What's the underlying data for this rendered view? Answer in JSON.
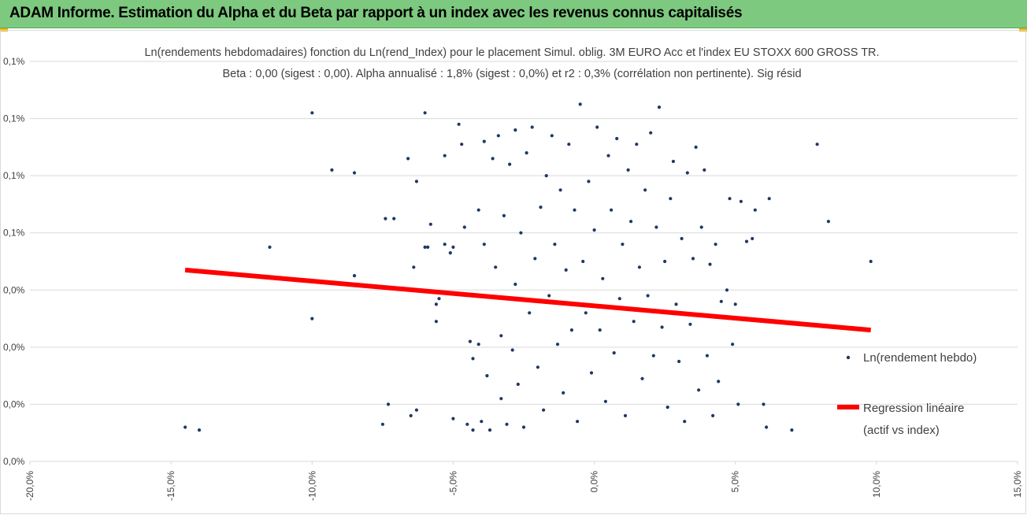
{
  "header": {
    "title": "ADAM Informe. Estimation du Alpha et du Beta par rapport à un index avec les revenus connus capitalisés"
  },
  "colors": {
    "banner": "#7dc97f",
    "accent_corner": "#f0b400",
    "points": "#1f3864",
    "regression": "#ff0000",
    "grid": "#d9d9d9"
  },
  "chart_data": {
    "type": "scatter",
    "title_line1": "Ln(rendements hebdomadaires) fonction du Ln(rend_Index) pour le placement Simul. oblig. 3M EURO Acc et l'index EU STOXX 600 GROSS TR.",
    "title_line2": "Beta : 0,00 (sigest : 0,00). Alpha annualisé : 1,8% (sigest : 0,0%) et r2 : 0,3% (corrélation non pertinente). Sig résid",
    "xlim": [
      -0.2,
      0.15
    ],
    "ylim": [
      0.0,
      0.0014
    ],
    "x_tick_labels": [
      "-20,0%",
      "-15,0%",
      "-10,0%",
      "-5,0%",
      "0,0%",
      "5,0%",
      "10,0%",
      "15,0%"
    ],
    "y_tick_labels": [
      "0,0%",
      "0,0%",
      "0,0%",
      "0,0%",
      "0,1%",
      "0,1%",
      "0,1%",
      "0,1%"
    ],
    "grid": "horizontal",
    "legend_position": "right",
    "series": [
      {
        "name": "Ln(rendement hebdo)",
        "kind": "points",
        "sampled_points": [
          [
            -0.145,
            0.00012
          ],
          [
            -0.14,
            0.00011
          ],
          [
            -0.115,
            0.00075
          ],
          [
            -0.1,
            0.0005
          ],
          [
            -0.1,
            0.00122
          ],
          [
            -0.093,
            0.00102
          ],
          [
            -0.085,
            0.00101
          ],
          [
            -0.085,
            0.00065
          ],
          [
            -0.075,
            0.00013
          ],
          [
            -0.074,
            0.00085
          ],
          [
            -0.073,
            0.0002
          ],
          [
            -0.071,
            0.00085
          ],
          [
            -0.066,
            0.00106
          ],
          [
            -0.065,
            0.00016
          ],
          [
            -0.064,
            0.00068
          ],
          [
            -0.063,
            0.00098
          ],
          [
            -0.063,
            0.00018
          ],
          [
            -0.06,
            0.00075
          ],
          [
            -0.06,
            0.00122
          ],
          [
            -0.059,
            0.00075
          ],
          [
            -0.058,
            0.00083
          ],
          [
            -0.056,
            0.00055
          ],
          [
            -0.056,
            0.00049
          ],
          [
            -0.055,
            0.00057
          ],
          [
            -0.053,
            0.00107
          ],
          [
            -0.053,
            0.00076
          ],
          [
            -0.052,
            0.00059
          ],
          [
            -0.051,
            0.00073
          ],
          [
            -0.05,
            0.00075
          ],
          [
            -0.05,
            0.00015
          ],
          [
            -0.048,
            0.00118
          ],
          [
            -0.047,
            0.00111
          ],
          [
            -0.046,
            0.00082
          ],
          [
            -0.045,
            0.00013
          ],
          [
            -0.044,
            0.00042
          ],
          [
            -0.043,
            0.00036
          ],
          [
            -0.043,
            0.00011
          ],
          [
            -0.041,
            0.00088
          ],
          [
            -0.041,
            0.00041
          ],
          [
            -0.04,
            0.00014
          ],
          [
            -0.039,
            0.00112
          ],
          [
            -0.039,
            0.00076
          ],
          [
            -0.038,
            0.0003
          ],
          [
            -0.037,
            0.00011
          ],
          [
            -0.036,
            0.00106
          ],
          [
            -0.035,
            0.00068
          ],
          [
            -0.034,
            0.00114
          ],
          [
            -0.033,
            0.00044
          ],
          [
            -0.033,
            0.00022
          ],
          [
            -0.032,
            0.00086
          ],
          [
            -0.031,
            0.00013
          ],
          [
            -0.03,
            0.00104
          ],
          [
            -0.029,
            0.00039
          ],
          [
            -0.028,
            0.00116
          ],
          [
            -0.028,
            0.00062
          ],
          [
            -0.027,
            0.00027
          ],
          [
            -0.026,
            0.0008
          ],
          [
            -0.025,
            0.00012
          ],
          [
            -0.024,
            0.00108
          ],
          [
            -0.023,
            0.00052
          ],
          [
            -0.022,
            0.00117
          ],
          [
            -0.021,
            0.00071
          ],
          [
            -0.02,
            0.00033
          ],
          [
            -0.019,
            0.00089
          ],
          [
            -0.018,
            0.00018
          ],
          [
            -0.017,
            0.001
          ],
          [
            -0.016,
            0.00058
          ],
          [
            -0.015,
            0.00114
          ],
          [
            -0.014,
            0.00076
          ],
          [
            -0.013,
            0.00041
          ],
          [
            -0.012,
            0.00095
          ],
          [
            -0.011,
            0.00024
          ],
          [
            -0.01,
            0.00067
          ],
          [
            -0.009,
            0.00111
          ],
          [
            -0.008,
            0.00046
          ],
          [
            -0.007,
            0.00088
          ],
          [
            -0.006,
            0.00014
          ],
          [
            -0.005,
            0.00125
          ],
          [
            -0.004,
            0.0007
          ],
          [
            -0.003,
            0.00052
          ],
          [
            -0.002,
            0.00098
          ],
          [
            -0.001,
            0.00031
          ],
          [
            0.0,
            0.00081
          ],
          [
            0.001,
            0.00117
          ],
          [
            0.002,
            0.00046
          ],
          [
            0.003,
            0.00064
          ],
          [
            0.004,
            0.00021
          ],
          [
            0.005,
            0.00107
          ],
          [
            0.006,
            0.00088
          ],
          [
            0.007,
            0.00038
          ],
          [
            0.008,
            0.00113
          ],
          [
            0.009,
            0.00057
          ],
          [
            0.01,
            0.00076
          ],
          [
            0.011,
            0.00016
          ],
          [
            0.012,
            0.00102
          ],
          [
            0.013,
            0.00084
          ],
          [
            0.014,
            0.00049
          ],
          [
            0.015,
            0.00111
          ],
          [
            0.016,
            0.00068
          ],
          [
            0.017,
            0.00029
          ],
          [
            0.018,
            0.00095
          ],
          [
            0.019,
            0.00058
          ],
          [
            0.02,
            0.00115
          ],
          [
            0.021,
            0.00037
          ],
          [
            0.022,
            0.00082
          ],
          [
            0.023,
            0.00124
          ],
          [
            0.024,
            0.00047
          ],
          [
            0.025,
            0.0007
          ],
          [
            0.026,
            0.00019
          ],
          [
            0.027,
            0.00092
          ],
          [
            0.028,
            0.00105
          ],
          [
            0.029,
            0.00055
          ],
          [
            0.03,
            0.00035
          ],
          [
            0.031,
            0.00078
          ],
          [
            0.032,
            0.00014
          ],
          [
            0.033,
            0.00101
          ],
          [
            0.034,
            0.00048
          ],
          [
            0.035,
            0.00071
          ],
          [
            0.036,
            0.0011
          ],
          [
            0.037,
            0.00025
          ],
          [
            0.038,
            0.00082
          ],
          [
            0.039,
            0.00102
          ],
          [
            0.04,
            0.00037
          ],
          [
            0.041,
            0.00069
          ],
          [
            0.042,
            0.00016
          ],
          [
            0.043,
            0.00076
          ],
          [
            0.044,
            0.00028
          ],
          [
            0.045,
            0.00056
          ],
          [
            0.047,
            0.0006
          ],
          [
            0.048,
            0.00092
          ],
          [
            0.049,
            0.00041
          ],
          [
            0.05,
            0.00055
          ],
          [
            0.051,
            0.0002
          ],
          [
            0.052,
            0.00091
          ],
          [
            0.054,
            0.00077
          ],
          [
            0.056,
            0.00078
          ],
          [
            0.057,
            0.00088
          ],
          [
            0.06,
            0.0002
          ],
          [
            0.061,
            0.00012
          ],
          [
            0.062,
            0.00092
          ],
          [
            0.07,
            0.00011
          ],
          [
            0.079,
            0.00111
          ],
          [
            0.083,
            0.00084
          ],
          [
            0.098,
            0.0007
          ]
        ]
      },
      {
        "name": "Regression linéaire\n(actif vs index)",
        "kind": "line",
        "points": [
          [
            -0.145,
            0.00067
          ],
          [
            0.098,
            0.00046
          ]
        ]
      }
    ]
  },
  "legend": {
    "points_label": "Ln(rendement hebdo)",
    "line_label_1": "Regression linéaire",
    "line_label_2": "(actif vs index)"
  }
}
